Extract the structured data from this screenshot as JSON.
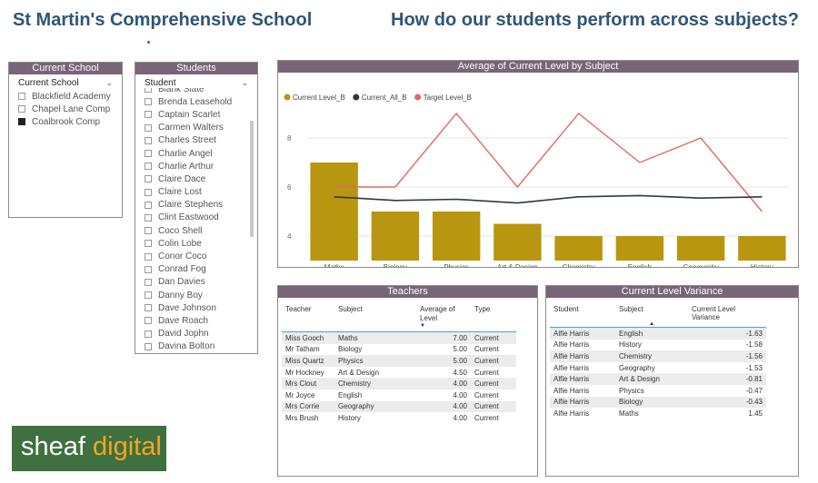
{
  "header": {
    "school_title": "St Martin's Comprehensive School",
    "question_title": "How do our students perform across subjects?"
  },
  "current_school_slicer": {
    "title": "Current School",
    "field": "Current School",
    "options": [
      {
        "label": "Blackfield Academy",
        "checked": false
      },
      {
        "label": "Chapel Lane Comp",
        "checked": false
      },
      {
        "label": "Coalbrook Comp",
        "checked": true
      }
    ]
  },
  "students_slicer": {
    "title": "Students",
    "field": "Student",
    "items": [
      "Blank Slate",
      "Brenda Leasehold",
      "Captain Scarlet",
      "Carmen Walters",
      "Charles Street",
      "Charlie Angel",
      "Charlie Arthur",
      "Claire Dace",
      "Claire Lost",
      "Claire Stephens",
      "Clint Eastwood",
      "Coco Shell",
      "Colin Lobe",
      "Conor Coco",
      "Conrad Fog",
      "Dan Davies",
      "Danny Boy",
      "Dave Johnson",
      "Dave Roach",
      "David Jophn",
      "Davina Bolton"
    ]
  },
  "chart_panel": {
    "title": "Average of Current Level by Subject"
  },
  "chart_data": {
    "type": "bar",
    "title": "Average of Current Level by Subject",
    "categories": [
      "Maths",
      "Biology",
      "Physics",
      "Art & Design",
      "Chemistry",
      "English",
      "Geography",
      "History"
    ],
    "series": [
      {
        "name": "Current Level_B",
        "type": "bar",
        "color": "#b8960f",
        "values": [
          7,
          5,
          5,
          4.5,
          4,
          4,
          4,
          4
        ]
      },
      {
        "name": "Current_All_B",
        "type": "line",
        "color": "#2d3a38",
        "values": [
          5.6,
          5.45,
          5.5,
          5.35,
          5.6,
          5.65,
          5.55,
          5.6
        ]
      },
      {
        "name": "Target Level_B",
        "type": "line",
        "color": "#e06b63",
        "values": [
          6,
          6,
          9,
          6,
          9,
          7,
          8,
          5
        ]
      }
    ],
    "y_ticks": [
      "4",
      "6",
      "8"
    ],
    "ylim": [
      3,
      10
    ],
    "grid": true,
    "legend": "top-left"
  },
  "teachers_table": {
    "title": "Teachers",
    "columns": [
      "Teacher",
      "Subject",
      "Average of Level",
      "Type"
    ],
    "rows": [
      [
        "Miss Gooch",
        "Maths",
        "7.00",
        "Current"
      ],
      [
        "Mr Tatham",
        "Biology",
        "5.00",
        "Current"
      ],
      [
        "Miss Quartz",
        "Physics",
        "5.00",
        "Current"
      ],
      [
        "Mr Hockney",
        "Art & Design",
        "4.50",
        "Current"
      ],
      [
        "Mrs Clout",
        "Chemistry",
        "4.00",
        "Current"
      ],
      [
        "Mr Joyce",
        "English",
        "4.00",
        "Current"
      ],
      [
        "Mrs Corrie",
        "Geography",
        "4.00",
        "Current"
      ],
      [
        "Mrs Brush",
        "History",
        "4.00",
        "Current"
      ]
    ]
  },
  "variance_table": {
    "title": "Current Level Variance",
    "columns": [
      "Student",
      "Subject",
      "Current Level Variance"
    ],
    "rows": [
      [
        "Alfie Harris",
        "English",
        "-1.63"
      ],
      [
        "Alfie Harris",
        "History",
        "-1.58"
      ],
      [
        "Alfie Harris",
        "Chemistry",
        "-1.56"
      ],
      [
        "Alfie Harris",
        "Geography",
        "-1.53"
      ],
      [
        "Alfie Harris",
        "Art & Design",
        "-0.81"
      ],
      [
        "Alfie Harris",
        "Physics",
        "-0.47"
      ],
      [
        "Alfie Harris",
        "Biology",
        "-0.43"
      ],
      [
        "Alfie Harris",
        "Maths",
        "1.45"
      ]
    ]
  },
  "logo": {
    "word1": "sheaf",
    "word2": "digital"
  }
}
